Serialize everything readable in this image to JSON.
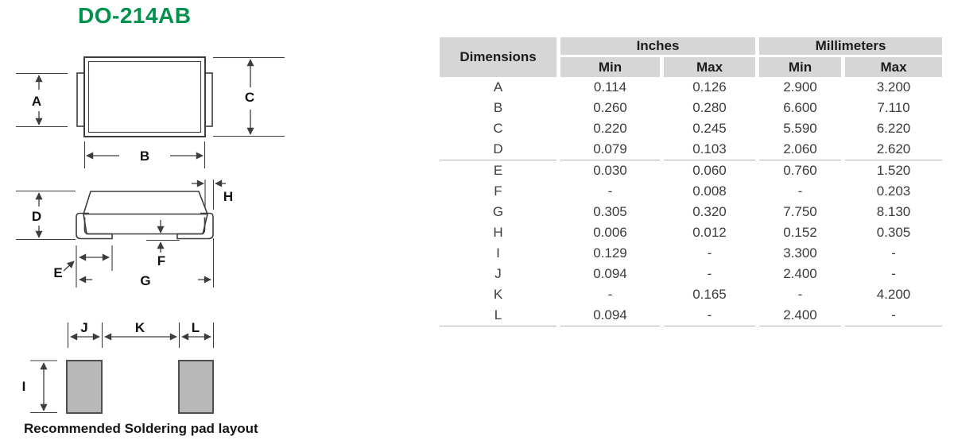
{
  "page": {
    "title": "DO-214AB",
    "caption": "Recommended Soldering pad layout"
  },
  "table": {
    "header": {
      "dimensions": "Dimensions",
      "inches": "Inches",
      "millimeters": "Millimeters",
      "min": "Min",
      "max": "Max"
    },
    "rows": [
      {
        "dim": "A",
        "in_min": "0.114",
        "in_max": "0.126",
        "mm_min": "2.900",
        "mm_max": "3.200",
        "separator_after": false
      },
      {
        "dim": "B",
        "in_min": "0.260",
        "in_max": "0.280",
        "mm_min": "6.600",
        "mm_max": "7.110",
        "separator_after": false
      },
      {
        "dim": "C",
        "in_min": "0.220",
        "in_max": "0.245",
        "mm_min": "5.590",
        "mm_max": "6.220",
        "separator_after": false
      },
      {
        "dim": "D",
        "in_min": "0.079",
        "in_max": "0.103",
        "mm_min": "2.060",
        "mm_max": "2.620",
        "separator_after": true
      },
      {
        "dim": "E",
        "in_min": "0.030",
        "in_max": "0.060",
        "mm_min": "0.760",
        "mm_max": "1.520",
        "separator_after": false
      },
      {
        "dim": "F",
        "in_min": "-",
        "in_max": "0.008",
        "mm_min": "-",
        "mm_max": "0.203",
        "separator_after": false
      },
      {
        "dim": "G",
        "in_min": "0.305",
        "in_max": "0.320",
        "mm_min": "7.750",
        "mm_max": "8.130",
        "separator_after": false
      },
      {
        "dim": "H",
        "in_min": "0.006",
        "in_max": "0.012",
        "mm_min": "0.152",
        "mm_max": "0.305",
        "separator_after": false
      },
      {
        "dim": "I",
        "in_min": "0.129",
        "in_max": "-",
        "mm_min": "3.300",
        "mm_max": "-",
        "separator_after": false
      },
      {
        "dim": "J",
        "in_min": "0.094",
        "in_max": "-",
        "mm_min": "2.400",
        "mm_max": "-",
        "separator_after": false
      },
      {
        "dim": "K",
        "in_min": "-",
        "in_max": "0.165",
        "mm_min": "-",
        "mm_max": "4.200",
        "separator_after": false
      },
      {
        "dim": "L",
        "in_min": "0.094",
        "in_max": "-",
        "mm_min": "2.400",
        "mm_max": "-",
        "separator_after": true
      }
    ]
  },
  "labels": {
    "A": "A",
    "B": "B",
    "C": "C",
    "D": "D",
    "E": "E",
    "F": "F",
    "G": "G",
    "H": "H",
    "I": "I",
    "J": "J",
    "K": "K",
    "L": "L"
  },
  "colors": {
    "title_green": "#00914d",
    "header_bg": "#d6d6d6",
    "pad_fill": "#b8b8b8",
    "diagram_line": "#3d3d3d",
    "separator": "#b3b3b3",
    "value_text": "#3c3c3c"
  }
}
